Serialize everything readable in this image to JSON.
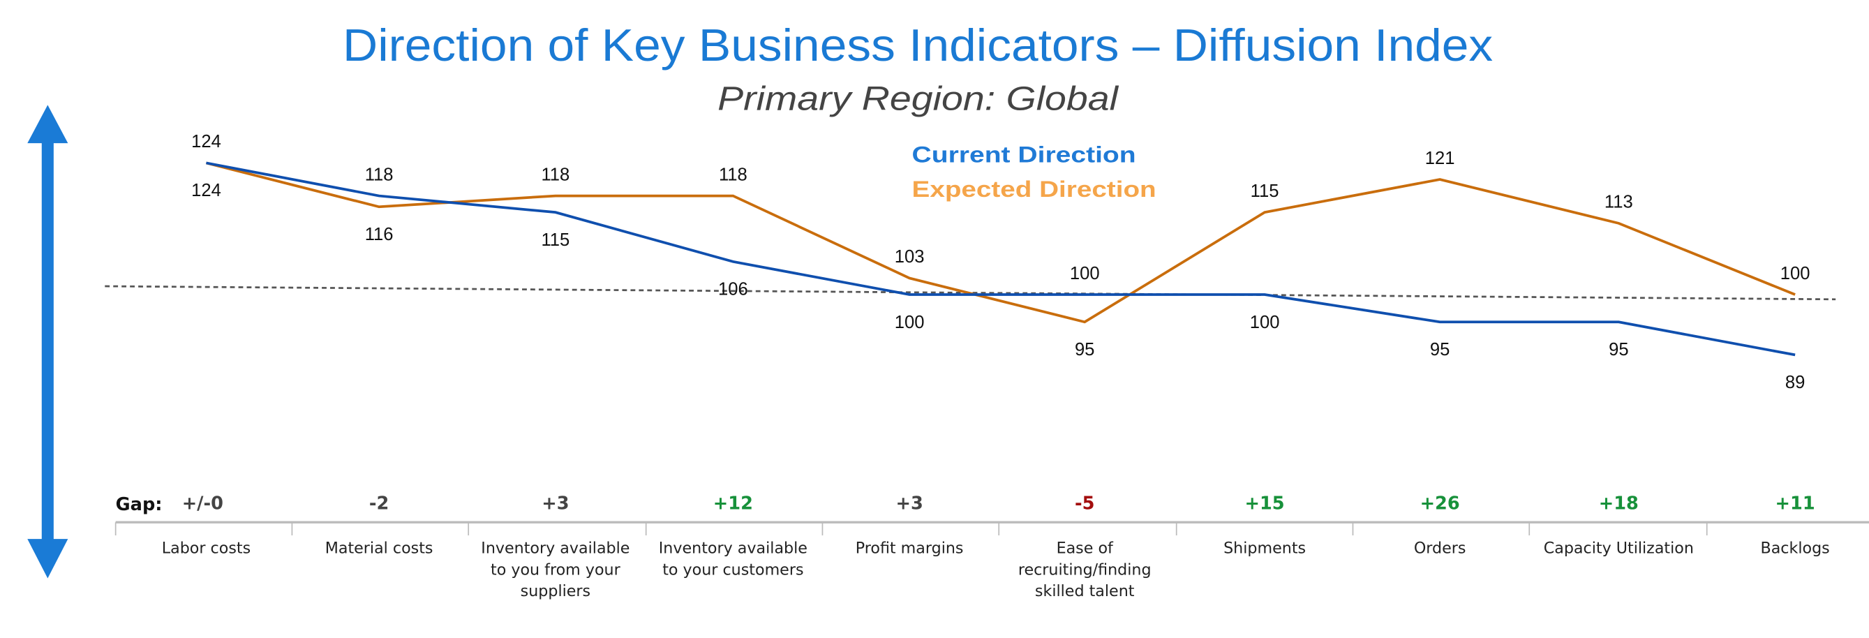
{
  "chart_data": {
    "type": "line",
    "title": "Direction of Key Business Indicators – Diffusion Index",
    "subtitle": "Primary Region: Global",
    "categories": [
      [
        "Labor costs"
      ],
      [
        "Material costs"
      ],
      [
        "Inventory available",
        "to you from your",
        "suppliers"
      ],
      [
        "Inventory available",
        "to your customers"
      ],
      [
        "Profit margins"
      ],
      [
        "Ease of",
        "recruiting/finding",
        "skilled talent"
      ],
      [
        "Shipments"
      ],
      [
        "Orders"
      ],
      [
        "Capacity Utilization"
      ],
      [
        "Backlogs"
      ]
    ],
    "series": [
      {
        "name": "Current Direction",
        "color": "#0f4fae",
        "legend_color": "#1f7ad6",
        "values": [
          124,
          118,
          115,
          106,
          100,
          100,
          100,
          95,
          95,
          89
        ]
      },
      {
        "name": "Expected Direction",
        "color": "#c96d0c",
        "legend_color": "#f5a54a",
        "values": [
          124,
          116,
          118,
          118,
          103,
          95,
          115,
          121,
          113,
          100
        ]
      }
    ],
    "reference_line": 100,
    "legend_position": "top-center",
    "gap_label": "Gap:",
    "gaps": [
      "+/-0",
      "-2",
      "+3",
      "+12",
      "+3",
      "-5",
      "+15",
      "+26",
      "+18",
      "+11"
    ],
    "gap_colors": {
      "neutral": "#444444",
      "positive": "#17913a",
      "negative": "#a30d0d"
    },
    "arrow_color": "#1a7bd6"
  }
}
